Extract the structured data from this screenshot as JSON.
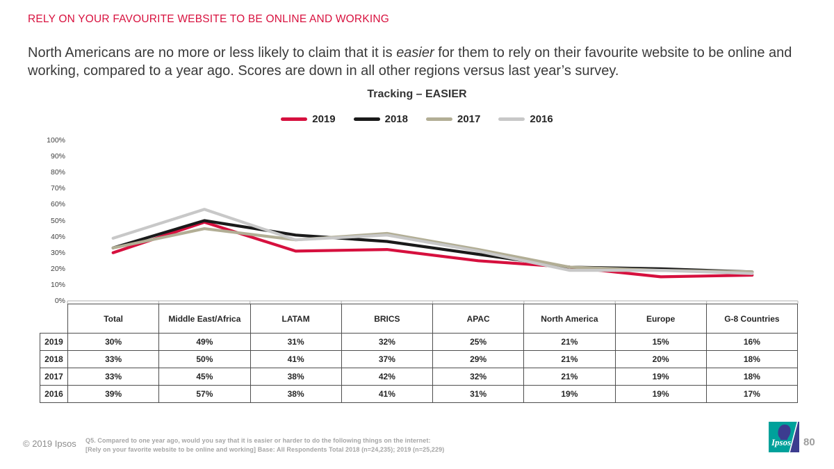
{
  "slide": {
    "kicker": "RELY ON YOUR FAVOURITE WEBSITE TO BE ONLINE AND WORKING",
    "subtitle_pre": "North Americans are no more or less likely to claim that it is ",
    "subtitle_em": "easier",
    "subtitle_post": " for them to rely on their favourite website to be online and working, compared to a year ago. Scores are down in all other regions versus last year’s survey."
  },
  "chart_data": {
    "type": "line",
    "title": "Tracking – EASIER",
    "categories": [
      "Total",
      "Middle East/Africa",
      "LATAM",
      "BRICS",
      "APAC",
      "North America",
      "Europe",
      "G-8 Countries"
    ],
    "series": [
      {
        "name": "2019",
        "color": "#D6103E",
        "values": [
          30,
          49,
          31,
          32,
          25,
          21,
          15,
          16
        ]
      },
      {
        "name": "2018",
        "color": "#1A1A1A",
        "values": [
          33,
          50,
          41,
          37,
          29,
          21,
          20,
          18
        ]
      },
      {
        "name": "2017",
        "color": "#B2AE95",
        "values": [
          33,
          45,
          38,
          42,
          32,
          21,
          19,
          18
        ]
      },
      {
        "name": "2016",
        "color": "#C8C8C8",
        "values": [
          39,
          57,
          38,
          41,
          31,
          19,
          19,
          17
        ]
      }
    ],
    "ylim": [
      0,
      100
    ],
    "ytick_step": 10,
    "ytick_suffix": "%",
    "legend_position": "top",
    "grid": false,
    "axis_color": "#BFBFBF"
  },
  "table": {
    "columns": [
      "Total",
      "Middle East/Africa",
      "LATAM",
      "BRICS",
      "APAC",
      "North America",
      "Europe",
      "G-8 Countries"
    ],
    "rows": [
      {
        "year": "2019",
        "values": [
          "30%",
          "49%",
          "31%",
          "32%",
          "25%",
          "21%",
          "15%",
          "16%"
        ]
      },
      {
        "year": "2018",
        "values": [
          "33%",
          "50%",
          "41%",
          "37%",
          "29%",
          "21%",
          "20%",
          "18%"
        ]
      },
      {
        "year": "2017",
        "values": [
          "33%",
          "45%",
          "38%",
          "42%",
          "32%",
          "21%",
          "19%",
          "18%"
        ]
      },
      {
        "year": "2016",
        "values": [
          "39%",
          "57%",
          "38%",
          "41%",
          "31%",
          "19%",
          "19%",
          "17%"
        ]
      }
    ]
  },
  "footer": {
    "copyright": "© 2019 Ipsos",
    "footnote_line1": "Q5. Compared to one year ago, would you say that it is easier or harder to do the following things on the internet:",
    "footnote_line2": "[Rely on your favorite website to be online and working] Base: All Respondents Total 2018 (n=24,235); 2019 (n=25,229)",
    "logo_text": "Ipsos",
    "page_number": "80"
  },
  "colors": {
    "accent_red": "#D8123F",
    "logo_teal": "#00A19B",
    "logo_navy": "#3C3C8F"
  }
}
